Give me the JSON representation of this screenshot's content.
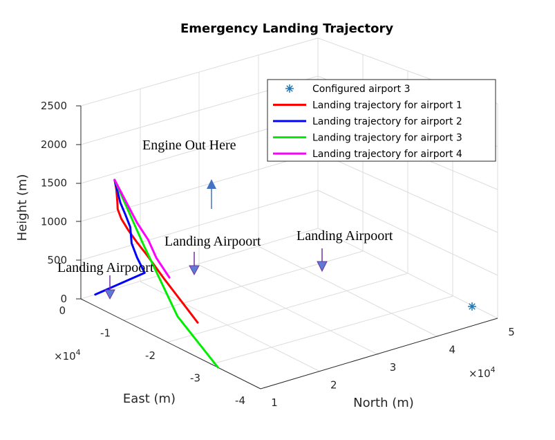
{
  "chart_data": {
    "type": "line",
    "title": "Emergency Landing Trajectory",
    "xlabel": "North (m)",
    "ylabel": "East (m)",
    "zlabel": "Height (m)",
    "x_multiplier": "×10",
    "x_multiplier_exp": "4",
    "y_multiplier": "×10",
    "y_multiplier_exp": "4",
    "xlim": [
      1,
      5
    ],
    "ylim": [
      -4,
      0
    ],
    "zlim": [
      0,
      2500
    ],
    "x_ticks": [
      "1",
      "2",
      "3",
      "4",
      "5"
    ],
    "y_ticks": [
      "0",
      "-1",
      "-2",
      "-3",
      "-4"
    ],
    "z_ticks": [
      "0",
      "500",
      "1000",
      "1500",
      "2000",
      "2500"
    ],
    "grid": true,
    "legend_position": "top-right",
    "airport_marker": {
      "name": "Configured airport 3",
      "color": "#1f77b4",
      "x": 4.9,
      "y": -0.05,
      "z": 0
    },
    "series": [
      {
        "name": "Landing trajectory for airport 1",
        "color": "#ff0000",
        "x": [
          1.41,
          1.39,
          1.31,
          1.17,
          1.05,
          1.0,
          0.99,
          1.01,
          1.1,
          1.18,
          1.2
        ],
        "y": [
          -0.34,
          -0.4,
          -0.5,
          -0.65,
          -0.85,
          -1.05,
          -1.25,
          -1.45,
          -1.75,
          -2.1,
          -2.4
        ],
        "z": [
          1760,
          1650,
          1500,
          1400,
          1300,
          1200,
          1100,
          1000,
          800,
          600,
          450
        ]
      },
      {
        "name": "Landing trajectory for airport 2",
        "color": "#0000ff",
        "x": [
          1.41,
          1.33,
          1.27,
          1.23,
          1.18,
          1.15,
          1.12,
          0.72
        ],
        "y": [
          -0.34,
          -0.55,
          -0.72,
          -0.87,
          -0.95,
          -1.1,
          -1.3,
          -0.6
        ],
        "z": [
          1760,
          1500,
          1380,
          1250,
          1050,
          900,
          750,
          150
        ]
      },
      {
        "name": "Landing trajectory for airport 3",
        "color": "#00ee00",
        "x": [
          1.41,
          2.1,
          2.9,
          3.85
        ],
        "y": [
          -0.34,
          -0.3,
          -0.25,
          -0.2
        ],
        "z": [
          1760,
          1100,
          400,
          0
        ]
      },
      {
        "name": "Landing trajectory for airport 4",
        "color": "#ff00ff",
        "x": [
          1.41,
          2.2,
          2.55,
          2.68,
          2.92
        ],
        "y": [
          -0.34,
          -0.05,
          0.05,
          0.0,
          -0.05
        ],
        "z": [
          1760,
          1350,
          1200,
          1020,
          850
        ]
      }
    ],
    "annotations": [
      {
        "text": "Engine Out Here"
      },
      {
        "text": "Landing Airpoort"
      },
      {
        "text": "Landing Airpoort"
      },
      {
        "text": "Landing Airpoort"
      }
    ]
  },
  "colors": {
    "arrow_blue": "#4472c4",
    "arrow_purple": "#7030a0",
    "grid": "#dcdcdc",
    "axis": "#262626"
  }
}
